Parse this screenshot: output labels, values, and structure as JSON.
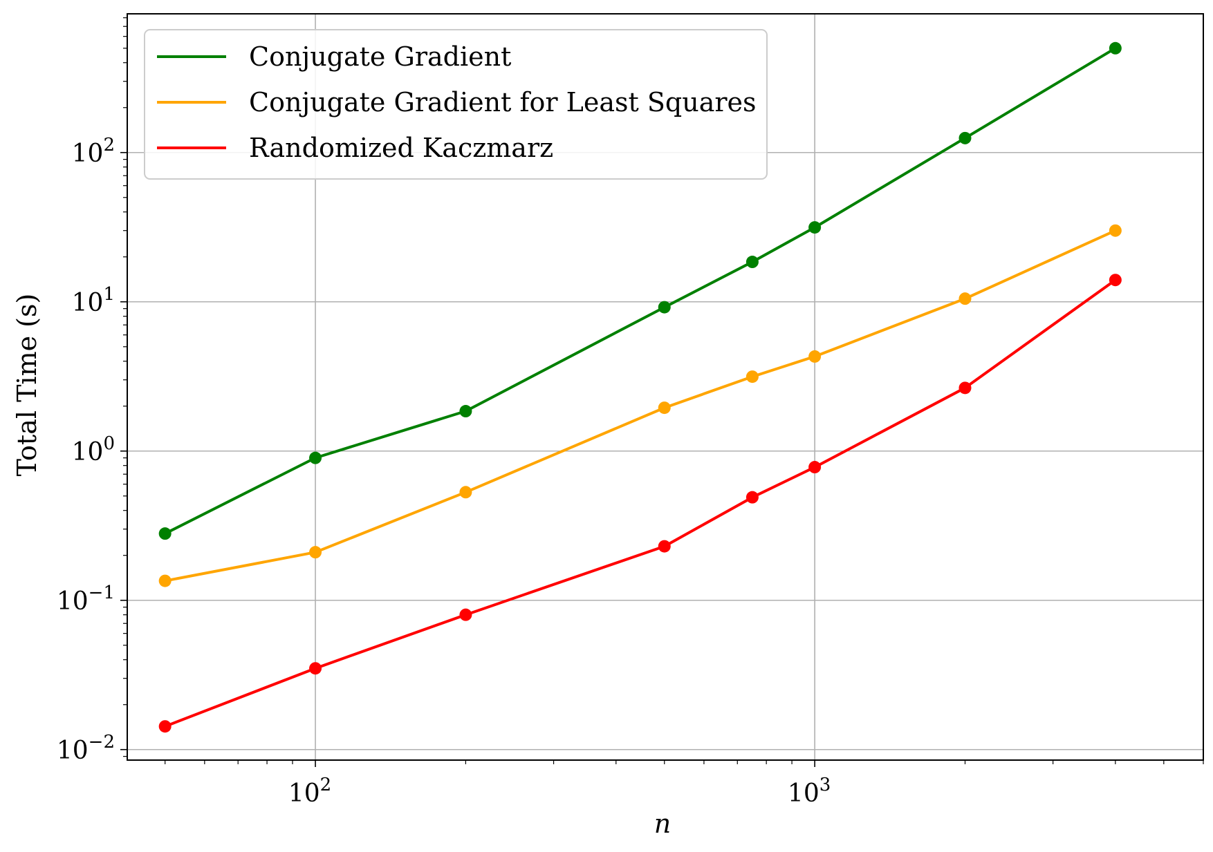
{
  "chart_data": {
    "type": "line",
    "title": "",
    "xlabel": "n",
    "ylabel": "Total Time (s)",
    "xscale": "log",
    "yscale": "log",
    "xlim": [
      42,
      6000
    ],
    "ylim": [
      0.0085,
      850
    ],
    "grid": true,
    "legend_position": "top-left",
    "x_ticks": [
      {
        "value": 100,
        "base": "10",
        "exp": "2"
      },
      {
        "value": 1000,
        "base": "10",
        "exp": "3"
      }
    ],
    "y_ticks": [
      {
        "value": 0.01,
        "base": "10",
        "exp": "−2"
      },
      {
        "value": 0.1,
        "base": "10",
        "exp": "−1"
      },
      {
        "value": 1,
        "base": "10",
        "exp": "0"
      },
      {
        "value": 10,
        "base": "10",
        "exp": "1"
      },
      {
        "value": 100,
        "base": "10",
        "exp": "2"
      }
    ],
    "series": [
      {
        "name": "Conjugate Gradient",
        "color": "#008000",
        "x": [
          50,
          100,
          200,
          500,
          750,
          1000,
          2000,
          4000
        ],
        "y": [
          0.28,
          0.9,
          1.85,
          9.2,
          18.5,
          31.5,
          125,
          500
        ]
      },
      {
        "name": "Conjugate Gradient for Least Squares",
        "color": "#ffa500",
        "x": [
          50,
          100,
          200,
          500,
          750,
          1000,
          2000,
          4000
        ],
        "y": [
          0.135,
          0.21,
          0.53,
          1.95,
          3.15,
          4.3,
          10.5,
          30
        ]
      },
      {
        "name": "Randomized Kaczmarz",
        "color": "#ff0000",
        "x": [
          50,
          100,
          200,
          500,
          750,
          1000,
          2000,
          4000
        ],
        "y": [
          0.0143,
          0.035,
          0.08,
          0.23,
          0.49,
          0.78,
          2.65,
          14
        ]
      }
    ]
  }
}
